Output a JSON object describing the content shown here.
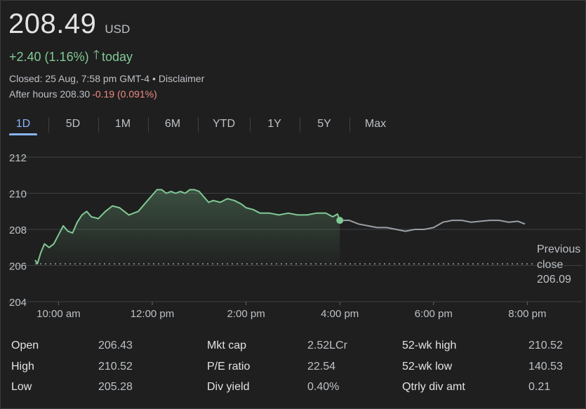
{
  "header": {
    "price": "208.49",
    "currency": "USD",
    "change": "+2.40 (1.16%)",
    "change_suffix": "today",
    "closed": "Closed: 25 Aug, 7:58 pm GMT-4",
    "meta_separator": "•",
    "disclaimer": "Disclaimer",
    "after_hours_label": "After hours 208.30",
    "after_hours_change": "-0.19 (0.091%)"
  },
  "tabs": [
    {
      "label": "1D",
      "active": true
    },
    {
      "label": "5D",
      "active": false
    },
    {
      "label": "1M",
      "active": false
    },
    {
      "label": "6M",
      "active": false
    },
    {
      "label": "YTD",
      "active": false
    },
    {
      "label": "1Y",
      "active": false
    },
    {
      "label": "5Y",
      "active": false
    },
    {
      "label": "Max",
      "active": false
    }
  ],
  "colors": {
    "regular_line": "#81c995",
    "after_hours_line": "#9aa0a6",
    "negative": "#f28b82",
    "accent": "#8ab4f8"
  },
  "chart_data": {
    "type": "line",
    "title": "",
    "xlabel": "",
    "ylabel": "",
    "x_unit": "hours",
    "yticks": [
      "212",
      "210",
      "208",
      "206",
      "204"
    ],
    "ytick_values": [
      212,
      210,
      208,
      206,
      204
    ],
    "ylim": [
      204,
      212
    ],
    "xticks": [
      "10:00 am",
      "12:00 pm",
      "2:00 pm",
      "4:00 pm",
      "6:00 pm",
      "8:00 pm"
    ],
    "xtick_values": [
      10,
      12,
      14,
      16,
      18,
      20
    ],
    "xlim": [
      9.5,
      20.0
    ],
    "previous_close": 206.09,
    "previous_close_label": [
      "Previous",
      "close",
      "206.09"
    ],
    "series": [
      {
        "session": "regular",
        "x": [
          9.5,
          9.55,
          9.62,
          9.7,
          9.8,
          9.9,
          10.0,
          10.1,
          10.2,
          10.3,
          10.4,
          10.5,
          10.6,
          10.7,
          10.85,
          11.0,
          11.15,
          11.3,
          11.5,
          11.7,
          11.9,
          12.0,
          12.1,
          12.2,
          12.3,
          12.4,
          12.5,
          12.6,
          12.7,
          12.8,
          12.9,
          13.0,
          13.1,
          13.2,
          13.3,
          13.45,
          13.6,
          13.75,
          13.9,
          14.0,
          14.15,
          14.3,
          14.5,
          14.7,
          14.9,
          15.1,
          15.3,
          15.5,
          15.7,
          15.85,
          15.95,
          16.0
        ],
        "y": [
          206.3,
          206.1,
          206.7,
          207.2,
          207.0,
          207.2,
          207.7,
          208.2,
          207.9,
          207.8,
          208.4,
          208.8,
          209.0,
          208.7,
          208.6,
          209.0,
          209.3,
          209.2,
          208.8,
          209.0,
          209.6,
          209.9,
          210.2,
          210.2,
          210.0,
          210.1,
          210.0,
          210.1,
          210.0,
          210.2,
          210.2,
          210.1,
          209.8,
          209.5,
          209.6,
          209.5,
          209.7,
          209.6,
          209.4,
          209.2,
          209.1,
          208.9,
          208.9,
          208.8,
          208.9,
          208.8,
          208.8,
          208.9,
          208.9,
          208.7,
          208.85,
          208.5
        ]
      },
      {
        "session": "after hours",
        "x": [
          16.0,
          16.2,
          16.4,
          16.6,
          16.8,
          17.0,
          17.2,
          17.4,
          17.6,
          17.8,
          18.0,
          18.2,
          18.4,
          18.6,
          18.8,
          19.0,
          19.2,
          19.4,
          19.6,
          19.8,
          19.95
        ],
        "y": [
          208.5,
          208.5,
          208.3,
          208.2,
          208.1,
          208.1,
          208.0,
          207.9,
          208.0,
          208.0,
          208.1,
          208.4,
          208.5,
          208.5,
          208.4,
          208.45,
          208.5,
          208.5,
          208.4,
          208.45,
          208.3
        ]
      }
    ]
  },
  "stats": [
    {
      "label": "Open",
      "value": "206.43"
    },
    {
      "label": "High",
      "value": "210.52"
    },
    {
      "label": "Low",
      "value": "205.28"
    },
    {
      "label": "Mkt cap",
      "value": "2.52LCr"
    },
    {
      "label": "P/E ratio",
      "value": "22.54"
    },
    {
      "label": "Div yield",
      "value": "0.40%"
    },
    {
      "label": "52-wk high",
      "value": "210.52"
    },
    {
      "label": "52-wk low",
      "value": "140.53"
    },
    {
      "label": "Qtrly div amt",
      "value": "0.21"
    }
  ]
}
